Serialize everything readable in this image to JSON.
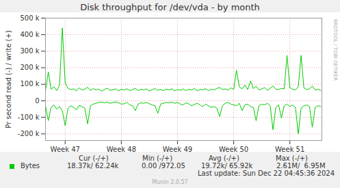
{
  "chart_data": {
    "type": "line",
    "title": "Disk throughput for /dev/vda - by month",
    "y_label": "Pr second read (-) / write (+)",
    "watermark": "RRDTOOL / TOBI OETIKER",
    "footer": "Munin 2.0.57",
    "last_update": "Last update: Sun Dec 22 04:45:36 2024",
    "stats": {
      "headers": [
        "Cur (-/+)",
        "Min (-/+)",
        "Avg (-/+)",
        "Max (-/+)"
      ],
      "values": [
        "18.37k/ 62.24k",
        "0.00 /972.05",
        "19.72k/ 65.92k",
        "2.61M/  6.95M"
      ]
    },
    "grid": true,
    "xlim": [
      46.65,
      51.57
    ],
    "xticks": [
      {
        "value": 47,
        "label": "Week 47"
      },
      {
        "value": 48,
        "label": "Week 48"
      },
      {
        "value": 49,
        "label": "Week 49"
      },
      {
        "value": 50,
        "label": "Week 50"
      },
      {
        "value": 51,
        "label": "Week 51"
      }
    ],
    "ylim": [
      -240000,
      500000
    ],
    "yticks": [
      {
        "value": -200000,
        "label": "-200 k"
      },
      {
        "value": -100000,
        "label": "-100 k"
      },
      0,
      {
        "value": 100000,
        "label": "100 k"
      },
      {
        "value": 200000,
        "label": "200 k"
      },
      {
        "value": 300000,
        "label": "300 k"
      },
      {
        "value": 400000,
        "label": "400 k"
      },
      {
        "value": 500000,
        "label": "500 k"
      }
    ],
    "x": [
      46.65,
      46.7,
      46.75,
      46.8,
      46.85,
      46.9,
      46.95,
      47.0,
      47.05,
      47.1,
      47.15,
      47.2,
      47.25,
      47.3,
      47.35,
      47.4,
      47.45,
      47.5,
      47.55,
      47.6,
      47.65,
      47.7,
      47.75,
      47.8,
      47.85,
      47.9,
      47.95,
      48.0,
      48.05,
      48.1,
      48.15,
      48.2,
      48.25,
      48.3,
      48.35,
      48.4,
      48.45,
      48.5,
      48.55,
      48.6,
      48.65,
      48.7,
      48.75,
      48.8,
      48.85,
      48.9,
      48.95,
      49.0,
      49.05,
      49.1,
      49.15,
      49.2,
      49.25,
      49.3,
      49.35,
      49.4,
      49.45,
      49.5,
      49.55,
      49.6,
      49.65,
      49.7,
      49.75,
      49.8,
      49.85,
      49.9,
      49.95,
      50.0,
      50.05,
      50.1,
      50.15,
      50.2,
      50.25,
      50.3,
      50.35,
      50.4,
      50.45,
      50.5,
      50.55,
      50.6,
      50.65,
      50.7,
      50.75,
      50.8,
      50.85,
      50.9,
      50.95,
      51.0,
      51.05,
      51.1,
      51.15,
      51.2,
      51.25,
      51.3,
      51.35,
      51.4,
      51.45,
      51.5,
      51.55
    ],
    "series": [
      {
        "name": "Bytes",
        "color": "#00cc00",
        "values": [
          60000,
          175000,
          70000,
          85000,
          62000,
          95000,
          440000,
          110000,
          75000,
          68000,
          72000,
          60000,
          78000,
          65000,
          70000,
          82000,
          62000,
          74000,
          66000,
          71000,
          58000,
          69000,
          76000,
          63000,
          67000,
          72000,
          60000,
          70000,
          65000,
          73000,
          61000,
          68000,
          75000,
          62000,
          70000,
          66000,
          72000,
          59000,
          68000,
          74000,
          63000,
          69000,
          61000,
          71000,
          66000,
          73000,
          60000,
          68000,
          64000,
          72000,
          62000,
          70000,
          65000,
          74000,
          61000,
          69000,
          67000,
          73000,
          62000,
          70000,
          66000,
          75000,
          80000,
          68000,
          72000,
          64000,
          78000,
          70000,
          185000,
          85000,
          72000,
          95000,
          68000,
          120000,
          74000,
          88000,
          66000,
          72000,
          80000,
          64000,
          76000,
          90000,
          70000,
          68000,
          75000,
          72000,
          275000,
          80000,
          70000,
          66000,
          85000,
          275000,
          78000,
          68000,
          72000,
          90000,
          65000,
          70000,
          62000
        ],
        "negative_values": [
          -30000,
          -120000,
          -40000,
          -25000,
          -50000,
          -35000,
          -60000,
          -150000,
          -45000,
          -30000,
          -40000,
          -55000,
          -28000,
          -35000,
          -45000,
          -140000,
          -30000,
          -20000,
          -15000,
          -10000,
          -8000,
          -12000,
          -9000,
          -15000,
          -10000,
          -7000,
          -12000,
          -20000,
          -18000,
          -10000,
          -25000,
          -30000,
          -60000,
          -20000,
          -12000,
          -15000,
          -10000,
          -18000,
          -25000,
          -30000,
          -75000,
          -20000,
          -15000,
          -10000,
          -12000,
          -8000,
          -15000,
          -10000,
          -20000,
          -25000,
          -12000,
          -18000,
          -30000,
          -22000,
          -15000,
          -25000,
          -35000,
          -20000,
          -30000,
          -40000,
          -35000,
          -45000,
          -95000,
          -30000,
          -15000,
          -10000,
          -20000,
          -25000,
          -30000,
          -15000,
          -60000,
          -25000,
          -20000,
          -35000,
          -40000,
          -120000,
          -30000,
          -20000,
          -25000,
          -15000,
          -30000,
          -175000,
          -40000,
          -25000,
          -105000,
          -30000,
          -20000,
          -35000,
          -25000,
          -40000,
          -200000,
          -45000,
          -30000,
          -25000,
          -35000,
          -160000,
          -40000,
          -30000,
          -35000
        ]
      }
    ]
  }
}
